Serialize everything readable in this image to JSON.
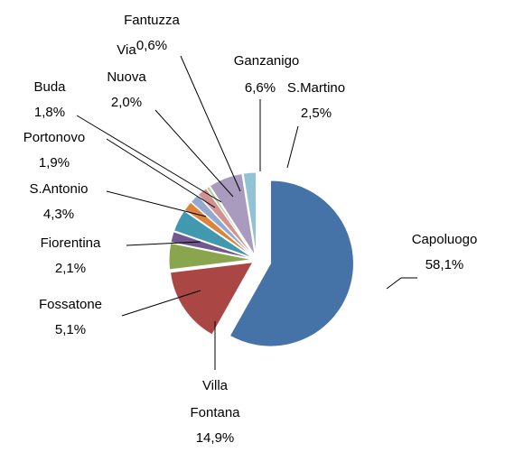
{
  "chart_data": {
    "type": "pie",
    "categories": [
      "Capoluogo",
      "Villa Fontana",
      "Fossatone",
      "Fiorentina",
      "S.Antonio",
      "Portonovo",
      "Buda",
      "Via Nuova",
      "Fantuzza",
      "Ganzanigo",
      "S.Martino"
    ],
    "values": [
      58.1,
      14.9,
      5.1,
      2.1,
      4.3,
      1.9,
      1.8,
      2.0,
      0.6,
      6.6,
      2.5
    ],
    "value_labels": [
      "58,1%",
      "14,9%",
      "5,1%",
      "2,1%",
      "4,3%",
      "1,9%",
      "1,8%",
      "2,0%",
      "0,6%",
      "6,6%",
      "2,5%"
    ],
    "colors": [
      "#4572a7",
      "#aa4643",
      "#89a54e",
      "#71588f",
      "#4198af",
      "#db843d",
      "#93a9cf",
      "#d19392",
      "#b9cd96",
      "#a99bbd",
      "#91c3d5"
    ]
  }
}
